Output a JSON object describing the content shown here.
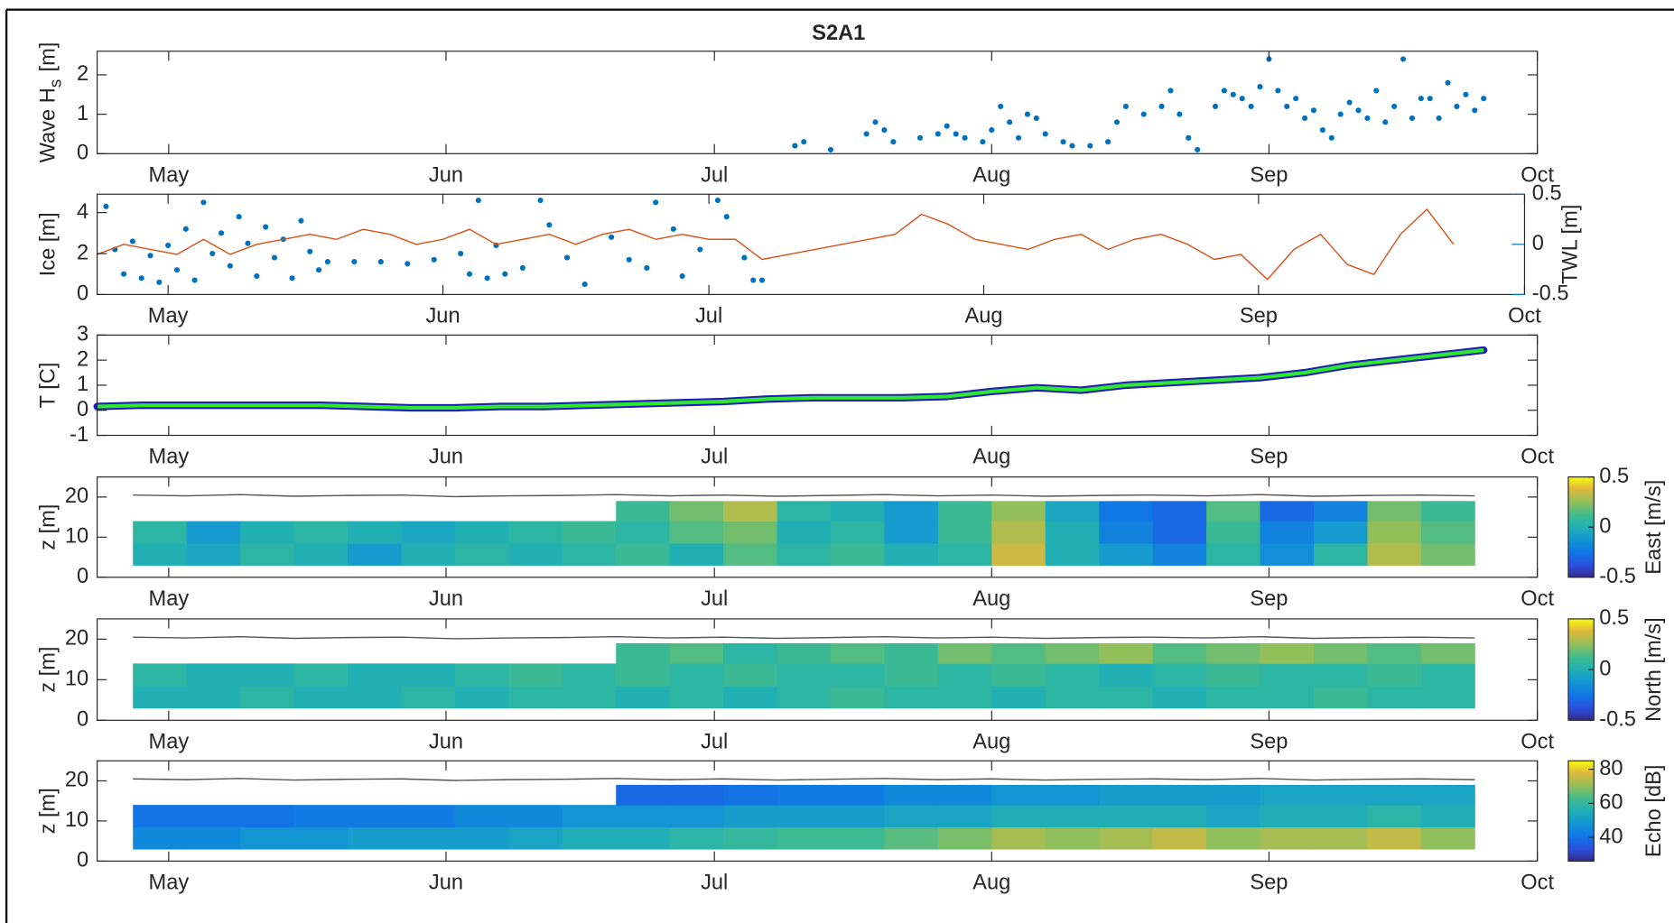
{
  "chart_data": [
    {
      "type": "scatter",
      "title": "S2A1",
      "ylabel": [
        "Wave H",
        "s",
        "[m]"
      ],
      "xlim": [
        -8,
        153
      ],
      "xticks": [
        {
          "value": 0,
          "label": "May"
        },
        {
          "value": 31,
          "label": "Jun"
        },
        {
          "value": 61,
          "label": "Jul"
        },
        {
          "value": 92,
          "label": "Aug"
        },
        {
          "value": 123,
          "label": "Sep"
        },
        {
          "value": 153,
          "label": "Oct"
        }
      ],
      "ylim": [
        0,
        2.6
      ],
      "yticks": [
        0,
        1,
        2
      ],
      "series": [
        {
          "color": "#0072bd",
          "x": [
            70,
            71,
            74,
            78,
            79,
            80,
            81,
            84,
            86,
            87,
            88,
            89,
            91,
            92,
            93,
            94,
            95,
            96,
            97,
            98,
            100,
            101,
            103,
            105,
            106,
            107,
            109,
            111,
            112,
            113,
            114,
            115,
            117,
            118,
            119,
            120,
            121,
            122,
            123,
            124,
            125,
            126,
            127,
            128,
            129,
            130,
            131,
            132,
            133,
            134,
            135,
            136,
            137,
            138,
            139,
            140,
            141,
            142,
            143,
            144,
            145,
            146,
            147
          ],
          "values": [
            0.2,
            0.3,
            0.1,
            0.5,
            0.8,
            0.6,
            0.3,
            0.4,
            0.5,
            0.7,
            0.5,
            0.4,
            0.3,
            0.6,
            1.2,
            0.8,
            0.4,
            1.0,
            0.9,
            0.5,
            0.3,
            0.2,
            0.2,
            0.3,
            0.8,
            1.2,
            1.0,
            1.2,
            1.6,
            1.0,
            0.4,
            0.1,
            1.2,
            1.6,
            1.5,
            1.4,
            1.2,
            1.7,
            2.4,
            1.6,
            1.2,
            1.4,
            0.9,
            1.1,
            0.6,
            0.4,
            1.0,
            1.3,
            1.1,
            0.9,
            1.6,
            0.8,
            1.2,
            2.4,
            0.9,
            1.4,
            1.4,
            0.9,
            1.8,
            1.2,
            1.5,
            1.1,
            1.4
          ]
        }
      ]
    },
    {
      "type": "scatter",
      "ylabel": [
        "Ice [m]"
      ],
      "y2label": "TWL [m]",
      "xlim": [
        -8,
        153
      ],
      "xticks": [
        {
          "value": 0,
          "label": "May"
        },
        {
          "value": 31,
          "label": "Jun"
        },
        {
          "value": 61,
          "label": "Jul"
        },
        {
          "value": 92,
          "label": "Aug"
        },
        {
          "value": 123,
          "label": "Sep"
        },
        {
          "value": 153,
          "label": "Oct"
        }
      ],
      "ylim": [
        0,
        4.9
      ],
      "yticks": [
        0,
        2,
        4
      ],
      "y2lim": [
        -0.5,
        0.5
      ],
      "y2ticks": [
        -0.5,
        0,
        0.5
      ],
      "series": [
        {
          "color": "#0072bd",
          "x": [
            -7,
            -6,
            -5,
            -4,
            -3,
            -2,
            -1,
            0,
            1,
            2,
            3,
            4,
            5,
            6,
            7,
            8,
            9,
            10,
            11,
            12,
            13,
            14,
            15,
            16,
            17,
            18,
            21,
            24,
            27,
            30,
            33,
            34,
            35,
            36,
            37,
            38,
            40,
            42,
            43,
            45,
            47,
            50,
            52,
            54,
            55,
            57,
            58,
            60,
            62,
            63,
            65,
            66,
            67
          ],
          "values": [
            4.3,
            2.2,
            1.0,
            2.6,
            0.8,
            1.9,
            0.6,
            2.4,
            1.2,
            3.2,
            0.7,
            4.5,
            2.0,
            3.0,
            1.4,
            3.8,
            2.5,
            0.9,
            3.3,
            1.8,
            2.7,
            0.8,
            3.6,
            2.1,
            1.2,
            1.6,
            1.6,
            1.6,
            1.5,
            1.7,
            2.0,
            1.0,
            4.6,
            0.8,
            2.4,
            1.0,
            1.3,
            4.6,
            3.4,
            1.8,
            0.5,
            2.8,
            1.7,
            1.3,
            4.5,
            3.2,
            0.9,
            2.2,
            4.6,
            3.8,
            1.8,
            0.7,
            0.7
          ]
        },
        {
          "type": "line",
          "axis": "y2",
          "color": "#d95319",
          "x": [
            -8,
            -5,
            -2,
            1,
            4,
            7,
            10,
            13,
            16,
            19,
            22,
            25,
            28,
            31,
            34,
            37,
            40,
            43,
            46,
            49,
            52,
            55,
            58,
            61,
            64,
            67,
            70,
            73,
            76,
            79,
            82,
            85,
            88,
            91,
            94,
            97,
            100,
            103,
            106,
            109,
            112,
            115,
            118,
            121,
            124,
            127,
            130,
            133,
            136,
            139,
            142,
            145
          ],
          "values": [
            -0.1,
            0.0,
            -0.05,
            -0.1,
            0.05,
            -0.1,
            0.0,
            0.05,
            0.1,
            0.05,
            0.15,
            0.1,
            0.0,
            0.05,
            0.15,
            0.0,
            0.05,
            0.1,
            0.0,
            0.1,
            0.15,
            0.05,
            0.1,
            0.05,
            0.05,
            -0.15,
            -0.1,
            -0.05,
            0.0,
            0.05,
            0.1,
            0.3,
            0.2,
            0.05,
            0.0,
            -0.05,
            0.05,
            0.1,
            -0.05,
            0.05,
            0.1,
            0.0,
            -0.15,
            -0.1,
            -0.35,
            -0.05,
            0.1,
            -0.2,
            -0.3,
            0.1,
            0.35,
            0.0
          ]
        }
      ]
    },
    {
      "type": "line",
      "ylabel": [
        "T [C]"
      ],
      "xlim": [
        -8,
        153
      ],
      "xticks": [
        {
          "value": 0,
          "label": "May"
        },
        {
          "value": 31,
          "label": "Jun"
        },
        {
          "value": 61,
          "label": "Jul"
        },
        {
          "value": 92,
          "label": "Aug"
        },
        {
          "value": 123,
          "label": "Sep"
        },
        {
          "value": 153,
          "label": "Oct"
        }
      ],
      "ylim": [
        -1,
        3
      ],
      "yticks": [
        -1,
        0,
        1,
        2,
        3
      ],
      "series": [
        {
          "color": "#2ee82e",
          "edgecolor": "#1f1fb4",
          "x": [
            -8,
            -3,
            2,
            7,
            12,
            17,
            22,
            27,
            32,
            37,
            42,
            47,
            52,
            57,
            62,
            67,
            72,
            77,
            82,
            87,
            92,
            97,
            102,
            107,
            112,
            117,
            122,
            127,
            132,
            137,
            142,
            147
          ],
          "values": [
            0.15,
            0.2,
            0.2,
            0.2,
            0.2,
            0.2,
            0.15,
            0.1,
            0.1,
            0.15,
            0.15,
            0.2,
            0.25,
            0.3,
            0.35,
            0.45,
            0.5,
            0.5,
            0.5,
            0.55,
            0.75,
            0.9,
            0.8,
            1.0,
            1.1,
            1.2,
            1.3,
            1.5,
            1.8,
            2.0,
            2.2,
            2.4
          ]
        }
      ]
    },
    {
      "type": "heatmap",
      "ylabel": [
        "z [m]"
      ],
      "clabel": "East [m/s]",
      "colormap": "parula",
      "xlim": [
        -8,
        153
      ],
      "xticks": [
        {
          "value": 0,
          "label": "May"
        },
        {
          "value": 31,
          "label": "Jun"
        },
        {
          "value": 61,
          "label": "Jul"
        },
        {
          "value": 92,
          "label": "Aug"
        },
        {
          "value": 123,
          "label": "Sep"
        },
        {
          "value": 153,
          "label": "Oct"
        }
      ],
      "ylim": [
        0,
        25
      ],
      "yticks": [
        0,
        10,
        20
      ],
      "clim": [
        -0.5,
        0.5
      ],
      "cticks": [
        -0.5,
        0,
        0.5
      ],
      "x": [
        -4,
        2,
        8,
        14,
        20,
        26,
        32,
        38,
        44,
        50,
        56,
        62,
        68,
        74,
        80,
        86,
        92,
        98,
        104,
        110,
        116,
        122,
        128,
        134,
        140,
        146
      ],
      "z": [
        3,
        8.5,
        14,
        19
      ],
      "values": [
        [
          0,
          -0.05,
          0.05,
          0,
          -0.1,
          0,
          0.05,
          0,
          0.05,
          0.1,
          0,
          0.15,
          0.05,
          0.1,
          0,
          0.05,
          0.35,
          0,
          -0.1,
          -0.2,
          0.05,
          -0.15,
          0.05,
          0.3,
          0.2
        ],
        [
          0.05,
          -0.1,
          0,
          0.05,
          0,
          -0.05,
          0,
          0.05,
          0.1,
          0.05,
          0.15,
          0.2,
          0,
          0.05,
          -0.1,
          0.1,
          0.3,
          0,
          -0.2,
          -0.3,
          0.1,
          -0.2,
          -0.1,
          0.25,
          0.15
        ],
        [
          null,
          null,
          null,
          null,
          null,
          null,
          null,
          null,
          null,
          0.1,
          0.2,
          0.3,
          0.05,
          0,
          -0.1,
          0.1,
          0.25,
          -0.05,
          -0.25,
          -0.3,
          0.15,
          -0.3,
          -0.2,
          0.2,
          0.1
        ]
      ],
      "surface": [
        20.5,
        20.3,
        20.6,
        20.2,
        20.4,
        20.5,
        20.1,
        20.3,
        20.4,
        20.6,
        20.3,
        20.5,
        20.2,
        20.4,
        20.6,
        20.3,
        20.5,
        20.2,
        20.4,
        20.5,
        20.3,
        20.6,
        20.2,
        20.4,
        20.5,
        20.3
      ]
    },
    {
      "type": "heatmap",
      "ylabel": [
        "z [m]"
      ],
      "clabel": "North [m/s]",
      "colormap": "parula",
      "xlim": [
        -8,
        153
      ],
      "xticks": [
        {
          "value": 0,
          "label": "May"
        },
        {
          "value": 31,
          "label": "Jun"
        },
        {
          "value": 61,
          "label": "Jul"
        },
        {
          "value": 92,
          "label": "Aug"
        },
        {
          "value": 123,
          "label": "Sep"
        },
        {
          "value": 153,
          "label": "Oct"
        }
      ],
      "ylim": [
        0,
        25
      ],
      "yticks": [
        0,
        10,
        20
      ],
      "clim": [
        -0.5,
        0.5
      ],
      "cticks": [
        -0.5,
        0,
        0.5
      ],
      "x": [
        -4,
        2,
        8,
        14,
        20,
        26,
        32,
        38,
        44,
        50,
        56,
        62,
        68,
        74,
        80,
        86,
        92,
        98,
        104,
        110,
        116,
        122,
        128,
        134,
        140,
        146
      ],
      "z": [
        3,
        8.5,
        14,
        19
      ],
      "values": [
        [
          0,
          0,
          0.05,
          0,
          0,
          0.05,
          0,
          0.05,
          0.05,
          0,
          0.05,
          0,
          0.05,
          0.1,
          0.05,
          0.05,
          0,
          0.05,
          0.05,
          0,
          0.05,
          0.05,
          0.1,
          0.05,
          0.05
        ],
        [
          0.05,
          0,
          0,
          0.05,
          0,
          0,
          0.05,
          0.1,
          0.05,
          0.1,
          0.05,
          0.1,
          0.05,
          0.05,
          0.1,
          0.05,
          0.1,
          0.05,
          0,
          0.05,
          0.1,
          0.05,
          0.05,
          0.1,
          0.05
        ],
        [
          null,
          null,
          null,
          null,
          null,
          null,
          null,
          null,
          null,
          0.1,
          0.15,
          0.05,
          0.1,
          0.15,
          0.1,
          0.2,
          0.15,
          0.2,
          0.25,
          0.15,
          0.2,
          0.25,
          0.2,
          0.15,
          0.2
        ]
      ],
      "surface": [
        20.5,
        20.3,
        20.6,
        20.2,
        20.4,
        20.5,
        20.1,
        20.3,
        20.4,
        20.6,
        20.3,
        20.5,
        20.2,
        20.4,
        20.6,
        20.3,
        20.5,
        20.2,
        20.4,
        20.5,
        20.3,
        20.6,
        20.2,
        20.4,
        20.5,
        20.3
      ]
    },
    {
      "type": "heatmap",
      "ylabel": [
        "z [m]"
      ],
      "clabel": "Echo [dB]",
      "colormap": "parula",
      "xlim": [
        -8,
        153
      ],
      "xticks": [
        {
          "value": 0,
          "label": "May"
        },
        {
          "value": 31,
          "label": "Jun"
        },
        {
          "value": 61,
          "label": "Jul"
        },
        {
          "value": 92,
          "label": "Aug"
        },
        {
          "value": 123,
          "label": "Sep"
        },
        {
          "value": 153,
          "label": "Oct"
        }
      ],
      "ylim": [
        0,
        25
      ],
      "yticks": [
        0,
        10,
        20
      ],
      "clim": [
        26,
        85
      ],
      "cticks": [
        40,
        60,
        80
      ],
      "x": [
        -4,
        2,
        8,
        14,
        20,
        26,
        32,
        38,
        44,
        50,
        56,
        62,
        68,
        74,
        80,
        86,
        92,
        98,
        104,
        110,
        116,
        122,
        128,
        134,
        140,
        146
      ],
      "z": [
        3,
        8.5,
        14,
        19
      ],
      "values": [
        [
          45,
          45,
          48,
          48,
          50,
          50,
          50,
          52,
          55,
          55,
          58,
          60,
          62,
          62,
          65,
          68,
          72,
          70,
          72,
          75,
          70,
          72,
          72,
          75,
          70
        ],
        [
          40,
          40,
          40,
          42,
          42,
          42,
          45,
          45,
          48,
          48,
          48,
          50,
          50,
          50,
          52,
          52,
          55,
          55,
          55,
          55,
          52,
          55,
          55,
          58,
          55
        ],
        [
          null,
          null,
          null,
          null,
          null,
          null,
          null,
          null,
          null,
          38,
          38,
          40,
          42,
          42,
          45,
          45,
          48,
          48,
          50,
          50,
          50,
          52,
          52,
          52,
          52
        ]
      ],
      "surface": [
        20.5,
        20.3,
        20.6,
        20.2,
        20.4,
        20.5,
        20.1,
        20.3,
        20.4,
        20.6,
        20.3,
        20.5,
        20.2,
        20.4,
        20.6,
        20.3,
        20.5,
        20.2,
        20.4,
        20.5,
        20.3,
        20.6,
        20.2,
        20.4,
        20.5,
        20.3
      ]
    }
  ]
}
